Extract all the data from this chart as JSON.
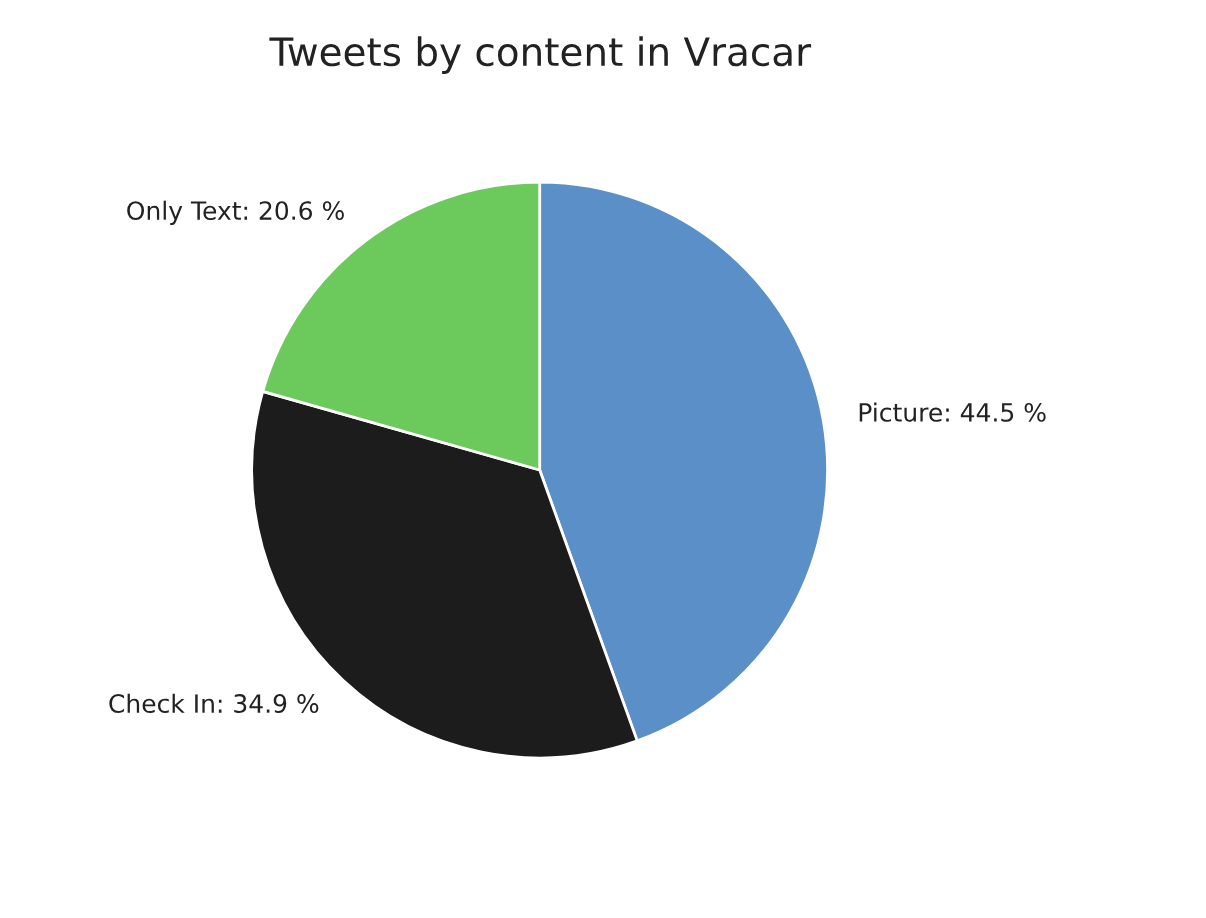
{
  "chart_data": {
    "type": "pie",
    "title": "Tweets by content in Vracar",
    "categories": [
      "Picture",
      "Check In",
      "Only Text"
    ],
    "values": [
      44.5,
      34.9,
      20.6
    ],
    "colors": [
      "#5a8fc8",
      "#1c1c1c",
      "#6cc95c"
    ],
    "value_labels": [
      "44.5 %",
      "34.9 %",
      "20.6 %"
    ]
  }
}
